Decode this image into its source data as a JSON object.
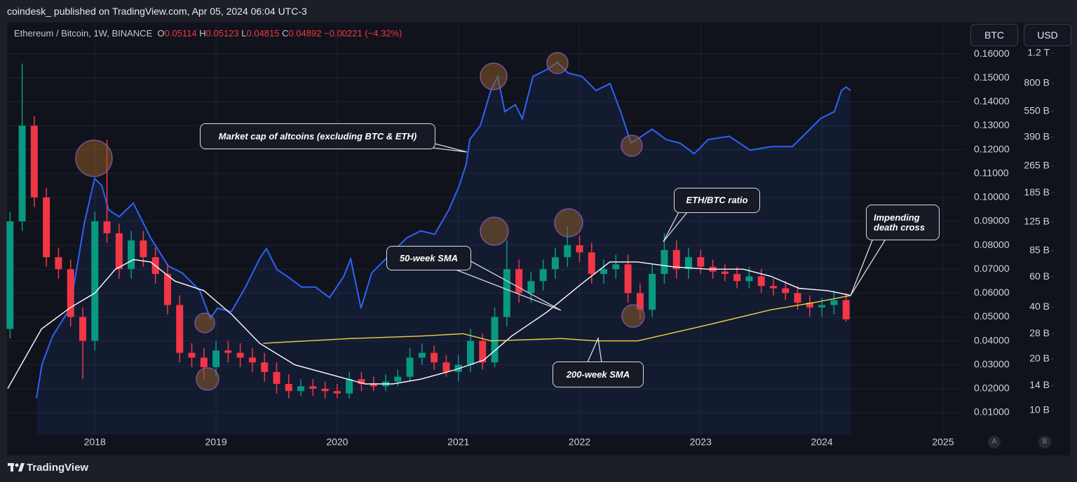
{
  "header": {
    "publisher": "coindesk_ published on TradingView.com, Apr 05, 2024 06:04 UTC-3"
  },
  "toolbar": {
    "base": "BTC",
    "quote": "USD",
    "auto": "A",
    "log": "B"
  },
  "footer": {
    "brand": "TradingView"
  },
  "chart_data": {
    "type": "candlestick",
    "title": "Ethereum / Bitcoin, 1W, BINANCE",
    "legend": {
      "o_key": "O",
      "o": "0.05114",
      "h_key": "H",
      "h": "0.05123",
      "l_key": "L",
      "l": "0.04815",
      "c_key": "C",
      "c": "0.04892",
      "change": "−0.00221 (−4.32%)"
    },
    "candles": {
      "name": "ETH/BTC ratio",
      "up_color": "#089981",
      "down_color": "#f23645",
      "x": [
        2017.3,
        2017.4,
        2017.5,
        2017.6,
        2017.7,
        2017.8,
        2017.9,
        2018.0,
        2018.1,
        2018.2,
        2018.3,
        2018.4,
        2018.5,
        2018.6,
        2018.7,
        2018.8,
        2018.9,
        2019.0,
        2019.1,
        2019.2,
        2019.3,
        2019.4,
        2019.5,
        2019.6,
        2019.7,
        2019.8,
        2019.9,
        2020.0,
        2020.1,
        2020.2,
        2020.3,
        2020.4,
        2020.5,
        2020.6,
        2020.7,
        2020.8,
        2020.9,
        2021.0,
        2021.1,
        2021.2,
        2021.3,
        2021.4,
        2021.5,
        2021.6,
        2021.7,
        2021.8,
        2021.9,
        2022.0,
        2022.1,
        2022.2,
        2022.3,
        2022.4,
        2022.5,
        2022.6,
        2022.7,
        2022.8,
        2022.9,
        2023.0,
        2023.1,
        2023.2,
        2023.3,
        2023.4,
        2023.5,
        2023.6,
        2023.7,
        2023.8,
        2023.9,
        2024.0,
        2024.1,
        2024.2
      ],
      "open": [
        0.045,
        0.09,
        0.13,
        0.1,
        0.075,
        0.07,
        0.05,
        0.04,
        0.09,
        0.085,
        0.07,
        0.082,
        0.075,
        0.068,
        0.055,
        0.035,
        0.033,
        0.029,
        0.036,
        0.035,
        0.033,
        0.031,
        0.027,
        0.022,
        0.019,
        0.021,
        0.02,
        0.019,
        0.018,
        0.024,
        0.022,
        0.021,
        0.023,
        0.025,
        0.033,
        0.035,
        0.031,
        0.027,
        0.03,
        0.04,
        0.031,
        0.05,
        0.07,
        0.06,
        0.065,
        0.07,
        0.075,
        0.08,
        0.077,
        0.068,
        0.07,
        0.072,
        0.06,
        0.053,
        0.068,
        0.078,
        0.07,
        0.075,
        0.071,
        0.069,
        0.068,
        0.065,
        0.067,
        0.063,
        0.062,
        0.06,
        0.056,
        0.054,
        0.055,
        0.057
      ],
      "high": [
        0.094,
        0.156,
        0.134,
        0.104,
        0.079,
        0.074,
        0.054,
        0.094,
        0.124,
        0.089,
        0.086,
        0.086,
        0.079,
        0.072,
        0.059,
        0.039,
        0.037,
        0.04,
        0.04,
        0.039,
        0.037,
        0.035,
        0.031,
        0.026,
        0.024,
        0.024,
        0.023,
        0.022,
        0.027,
        0.027,
        0.025,
        0.026,
        0.028,
        0.037,
        0.039,
        0.038,
        0.034,
        0.034,
        0.045,
        0.043,
        0.054,
        0.082,
        0.074,
        0.069,
        0.074,
        0.079,
        0.088,
        0.084,
        0.081,
        0.074,
        0.076,
        0.076,
        0.064,
        0.072,
        0.085,
        0.082,
        0.079,
        0.078,
        0.074,
        0.072,
        0.071,
        0.071,
        0.07,
        0.066,
        0.065,
        0.063,
        0.059,
        0.058,
        0.061,
        0.06
      ],
      "low": [
        0.041,
        0.086,
        0.096,
        0.071,
        0.066,
        0.046,
        0.024,
        0.036,
        0.081,
        0.066,
        0.066,
        0.071,
        0.064,
        0.051,
        0.031,
        0.029,
        0.024,
        0.025,
        0.031,
        0.029,
        0.027,
        0.023,
        0.018,
        0.016,
        0.017,
        0.017,
        0.016,
        0.016,
        0.016,
        0.019,
        0.019,
        0.019,
        0.021,
        0.023,
        0.03,
        0.028,
        0.025,
        0.023,
        0.027,
        0.028,
        0.029,
        0.046,
        0.056,
        0.056,
        0.061,
        0.066,
        0.071,
        0.073,
        0.064,
        0.064,
        0.066,
        0.056,
        0.049,
        0.05,
        0.064,
        0.066,
        0.066,
        0.068,
        0.066,
        0.065,
        0.062,
        0.062,
        0.06,
        0.059,
        0.057,
        0.053,
        0.05,
        0.05,
        0.051,
        0.048
      ],
      "close": [
        0.09,
        0.13,
        0.1,
        0.075,
        0.07,
        0.05,
        0.04,
        0.09,
        0.085,
        0.07,
        0.082,
        0.075,
        0.068,
        0.055,
        0.035,
        0.033,
        0.029,
        0.036,
        0.035,
        0.033,
        0.031,
        0.027,
        0.022,
        0.019,
        0.021,
        0.02,
        0.019,
        0.018,
        0.024,
        0.022,
        0.021,
        0.023,
        0.025,
        0.033,
        0.035,
        0.031,
        0.027,
        0.03,
        0.04,
        0.031,
        0.05,
        0.07,
        0.06,
        0.065,
        0.07,
        0.075,
        0.08,
        0.077,
        0.068,
        0.07,
        0.072,
        0.06,
        0.053,
        0.068,
        0.078,
        0.07,
        0.075,
        0.071,
        0.069,
        0.068,
        0.065,
        0.067,
        0.063,
        0.062,
        0.06,
        0.056,
        0.054,
        0.055,
        0.057,
        0.049
      ]
    },
    "series": [
      {
        "name": "50-week SMA",
        "color": "#ffffff",
        "x": [
          2017.28,
          2017.56,
          2017.8,
          2018.0,
          2018.17,
          2018.32,
          2018.46,
          2018.66,
          2018.9,
          2019.13,
          2019.36,
          2019.65,
          2019.94,
          2020.23,
          2020.46,
          2020.69,
          2020.98,
          2021.21,
          2021.44,
          2021.73,
          2022.02,
          2022.25,
          2022.48,
          2022.77,
          2023.06,
          2023.35,
          2023.58,
          2023.81,
          2024.05,
          2024.24
        ],
        "values": [
          0.02,
          0.045,
          0.054,
          0.06,
          0.07,
          0.074,
          0.073,
          0.065,
          0.061,
          0.051,
          0.039,
          0.03,
          0.026,
          0.022,
          0.022,
          0.024,
          0.028,
          0.032,
          0.042,
          0.052,
          0.064,
          0.073,
          0.073,
          0.071,
          0.07,
          0.07,
          0.067,
          0.062,
          0.061,
          0.059
        ]
      },
      {
        "name": "200-week SMA",
        "color": "#f5d142",
        "x": [
          2019.39,
          2020.11,
          2020.69,
          2021.04,
          2021.27,
          2021.85,
          2022.14,
          2022.48,
          2023.0,
          2023.58,
          2023.93,
          2024.24
        ],
        "values": [
          0.039,
          0.041,
          0.042,
          0.043,
          0.04,
          0.041,
          0.04,
          0.04,
          0.046,
          0.053,
          0.056,
          0.059
        ]
      },
      {
        "name": "Market cap of altcoins (excluding BTC & ETH)",
        "color": "#2f62f5",
        "axis": "y2",
        "x": [
          2017.518,
          2017.564,
          2017.651,
          2017.796,
          2017.912,
          2017.998,
          2018.056,
          2018.114,
          2018.201,
          2018.317,
          2018.403,
          2018.461,
          2018.606,
          2018.722,
          2018.866,
          2018.953,
          2019.011,
          2019.127,
          2019.243,
          2019.359,
          2019.416,
          2019.503,
          2019.59,
          2019.706,
          2019.821,
          2019.937,
          2020.053,
          2020.111,
          2020.197,
          2020.284,
          2020.458,
          2020.574,
          2020.689,
          2020.805,
          2020.921,
          2021.008,
          2021.065,
          2021.094,
          2021.181,
          2021.268,
          2021.325,
          2021.383,
          2021.47,
          2021.528,
          2021.615,
          2021.731,
          2021.818,
          2021.905,
          2022.02,
          2022.136,
          2022.252,
          2022.339,
          2022.425,
          2022.512,
          2022.599,
          2022.715,
          2022.831,
          2022.946,
          2023.062,
          2023.236,
          2023.409,
          2023.583,
          2023.756,
          2023.872,
          2023.988,
          2024.104,
          2024.162,
          2024.201,
          2024.237
        ],
        "values": [
          11800000000.0,
          18600000000.0,
          27100000000.0,
          39400000000.0,
          122000000000.0,
          224000000000.0,
          204000000000.0,
          147000000000.0,
          134000000000.0,
          161000000000.0,
          122000000000.0,
          101000000000.0,
          69300000000.0,
          63100000000.0,
          49900000000.0,
          34300000000.0,
          39400000000.0,
          37600000000.0,
          52300000000.0,
          76200000000.0,
          87700000000.0,
          66100000000.0,
          60200000000.0,
          52300000000.0,
          52300000000.0,
          45400000000.0,
          60200000000.0,
          76200000000.0,
          39400000000.0,
          63100000000.0,
          83600000000.0,
          101000000000.0,
          111000000000.0,
          106000000000.0,
          147000000000.0,
          204000000000.0,
          271000000000.0,
          377000000000.0,
          454000000000.0,
          727000000000.0,
          877000000000.0,
          548000000000.0,
          602000000000.0,
          499000000000.0,
          877000000000.0,
          963000000000.0,
          1060000000000.0,
          919000000000.0,
          877000000000.0,
          727000000000.0,
          798000000000.0,
          548000000000.0,
          359000000000.0,
          394000000000.0,
          433000000000.0,
          377000000000.0,
          359000000000.0,
          312000000000.0,
          377000000000.0,
          394000000000.0,
          327000000000.0,
          343000000000.0,
          343000000000.0,
          413000000000.0,
          499000000000.0,
          548000000000.0,
          727000000000.0,
          762000000000.0,
          727000000000.0
        ]
      }
    ],
    "annotations": [
      "Impending death cross"
    ],
    "xlim": [
      2017.275,
      2025.174
    ],
    "xticks": [
      2018,
      2019,
      2020,
      2021,
      2022,
      2023,
      2024,
      2025
    ],
    "ylim": [
      0.0009,
      0.1732
    ],
    "yticks": [
      {
        "value": 0.01,
        "label": "0.01000"
      },
      {
        "value": 0.02,
        "label": "0.02000"
      },
      {
        "value": 0.03,
        "label": "0.03000"
      },
      {
        "value": 0.04,
        "label": "0.04000"
      },
      {
        "value": 0.05,
        "label": "0.05000"
      },
      {
        "value": 0.06,
        "label": "0.06000"
      },
      {
        "value": 0.07,
        "label": "0.07000"
      },
      {
        "value": 0.08,
        "label": "0.08000"
      },
      {
        "value": 0.09,
        "label": "0.09000"
      },
      {
        "value": 0.1,
        "label": "0.10000"
      },
      {
        "value": 0.11,
        "label": "0.11000"
      },
      {
        "value": 0.12,
        "label": "0.12000"
      },
      {
        "value": 0.13,
        "label": "0.13000"
      },
      {
        "value": 0.14,
        "label": "0.14000"
      },
      {
        "value": 0.15,
        "label": "0.15000"
      },
      {
        "value": 0.16,
        "label": "0.16000"
      }
    ],
    "y2lim": [
      7270000000.0,
      1810000000000.0
    ],
    "y2scale": "log",
    "y2ticks": [
      {
        "value": 10000000000.0,
        "label": "10 B"
      },
      {
        "value": 14000000000.0,
        "label": "14 B"
      },
      {
        "value": 20000000000.0,
        "label": "20 B"
      },
      {
        "value": 28000000000.0,
        "label": "28 B"
      },
      {
        "value": 40000000000.0,
        "label": "40 B"
      },
      {
        "value": 60000000000.0,
        "label": "60 B"
      },
      {
        "value": 85000000000.0,
        "label": "85 B"
      },
      {
        "value": 125000000000.0,
        "label": "125 B"
      },
      {
        "value": 185000000000.0,
        "label": "185 B"
      },
      {
        "value": 265000000000.0,
        "label": "265 B"
      },
      {
        "value": 390000000000.0,
        "label": "390 B"
      },
      {
        "value": 550000000000.0,
        "label": "550 B"
      },
      {
        "value": 800000000000.0,
        "label": "800 B"
      },
      {
        "value": 1200000000000.0,
        "label": "1.2 T"
      }
    ],
    "grid": true
  }
}
